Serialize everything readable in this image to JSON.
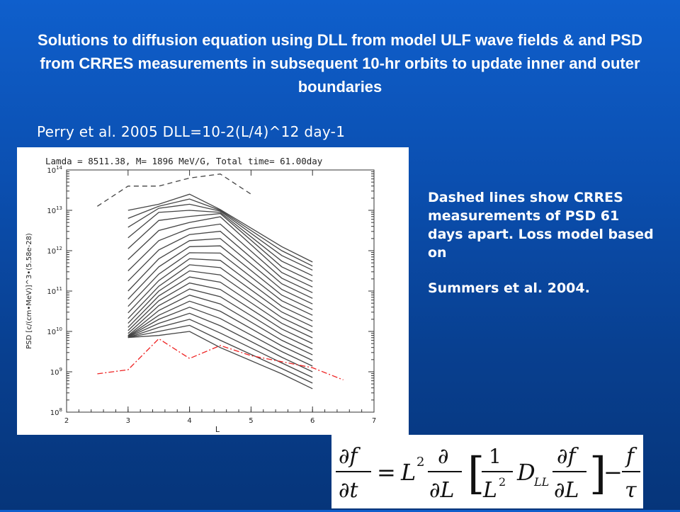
{
  "title": "Solutions to diffusion equation using DLL from model ULF wave fields & and PSD from CRRES measurements in subsequent 10-hr orbits to update inner and outer boundaries",
  "subtitle": "Perry et al. 2005  DLL=10-2(L/4)^12 day-1",
  "note": {
    "line1": "Dashed lines show CRRES measurements of PSD 61 days apart. Loss model based on",
    "line2": "Summers et al. 2004."
  },
  "equation": {
    "df": "∂f",
    "dt": "∂t",
    "eq": "=",
    "L": "L",
    "two": "2",
    "d": "∂",
    "dL": "∂L",
    "one": "1",
    "D": "D",
    "LL": "LL",
    "minus": "−",
    "f": "f",
    "tau": "τ"
  },
  "chart_data": {
    "type": "line",
    "title": "Lamda =   8511.38,   M= 1896 MeV/G, Total time= 61.00day",
    "xlabel": "L",
    "ylabel": "PSD [c/(cm•MeV)]^3•(5.58e-28)",
    "xlim": [
      2,
      7
    ],
    "ylim_log10": [
      8,
      14
    ],
    "log_y": true,
    "x_ticks": [
      2,
      3,
      4,
      5,
      6,
      7
    ],
    "y_tick_labels": [
      {
        "exp": 8,
        "base": "10",
        "sup": "8"
      },
      {
        "exp": 9,
        "base": "10",
        "sup": "9"
      },
      {
        "exp": 10,
        "base": "10",
        "sup": "10"
      },
      {
        "exp": 11,
        "base": "10",
        "sup": "11"
      },
      {
        "exp": 12,
        "base": "10",
        "sup": "12"
      },
      {
        "exp": 13,
        "base": "10",
        "sup": "13"
      },
      {
        "exp": 14,
        "base": "10",
        "sup": "14"
      }
    ],
    "solid_x": [
      3.0,
      3.5,
      4.0,
      4.5,
      5.5,
      6.0
    ],
    "solid_curves_log10": [
      [
        9.85,
        9.9,
        10.0,
        9.6,
        8.95,
        8.58
      ],
      [
        9.85,
        10.0,
        10.15,
        9.78,
        9.08,
        8.72
      ],
      [
        9.85,
        10.1,
        10.3,
        9.96,
        9.22,
        8.86
      ],
      [
        9.86,
        10.2,
        10.45,
        10.14,
        9.36,
        9.0
      ],
      [
        9.87,
        10.3,
        10.6,
        10.32,
        9.5,
        9.14
      ],
      [
        9.88,
        10.4,
        10.75,
        10.5,
        9.64,
        9.28
      ],
      [
        9.9,
        10.52,
        10.9,
        10.68,
        9.78,
        9.42
      ],
      [
        9.95,
        10.64,
        11.05,
        10.86,
        9.92,
        9.56
      ],
      [
        10.02,
        10.76,
        11.2,
        11.04,
        10.06,
        9.7
      ],
      [
        10.1,
        10.88,
        11.35,
        11.22,
        10.2,
        9.84
      ],
      [
        10.2,
        11.0,
        11.5,
        11.4,
        10.34,
        9.98
      ],
      [
        10.32,
        11.12,
        11.65,
        11.58,
        10.48,
        10.12
      ],
      [
        10.46,
        11.26,
        11.8,
        11.76,
        10.62,
        10.26
      ],
      [
        10.62,
        11.42,
        11.95,
        11.94,
        10.76,
        10.4
      ],
      [
        10.8,
        11.6,
        12.1,
        12.12,
        10.9,
        10.54
      ],
      [
        11.0,
        11.8,
        12.25,
        12.3,
        11.04,
        10.68
      ],
      [
        11.25,
        12.02,
        12.4,
        12.48,
        11.18,
        10.82
      ],
      [
        11.5,
        12.25,
        12.55,
        12.66,
        11.32,
        10.96
      ],
      [
        11.78,
        12.5,
        12.7,
        12.84,
        11.46,
        11.1
      ],
      [
        12.05,
        12.75,
        12.85,
        12.92,
        11.6,
        11.24
      ],
      [
        12.32,
        12.95,
        13.0,
        12.95,
        11.74,
        11.38
      ],
      [
        12.58,
        13.05,
        13.15,
        12.98,
        11.88,
        11.52
      ],
      [
        12.8,
        13.1,
        13.28,
        13.0,
        12.0,
        11.62
      ],
      [
        13.0,
        13.15,
        13.4,
        13.02,
        12.1,
        11.72
      ]
    ],
    "dashed_upper": {
      "x": [
        2.5,
        3.0,
        3.5,
        4.0,
        4.5,
        5.0
      ],
      "log10": [
        13.1,
        13.6,
        13.6,
        13.8,
        13.9,
        13.4
      ]
    },
    "dashdot_lower": {
      "x": [
        2.5,
        3.0,
        3.5,
        4.0,
        4.5,
        5.0,
        6.0,
        6.5
      ],
      "log10": [
        8.95,
        9.05,
        9.82,
        9.33,
        9.65,
        9.4,
        9.1,
        8.8
      ],
      "color": "#ee2222"
    },
    "colors": {
      "solid": "#444444",
      "dashed": "#444444",
      "dashdot": "#ee2222"
    }
  }
}
